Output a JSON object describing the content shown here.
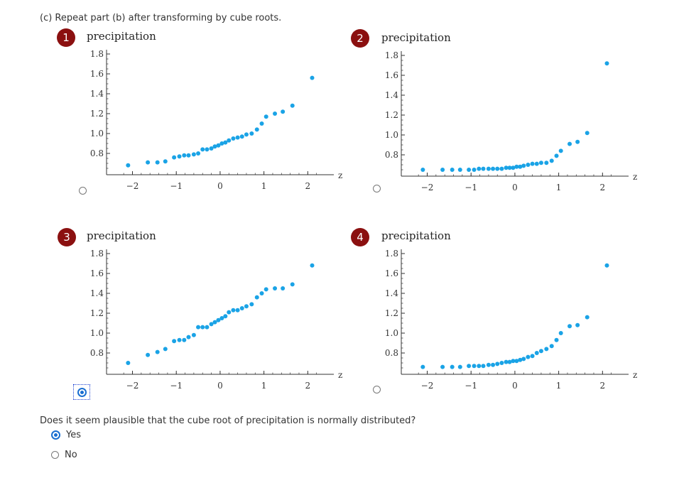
{
  "intro": "(c) Repeat part (b) after transforming by cube roots.",
  "colors": {
    "point": "#1aa3e6",
    "badge": "#8b1010",
    "selected": "#1a6fd1"
  },
  "plots": [
    {
      "number": "1",
      "title": "precipitation",
      "x_label": "z",
      "selected": false,
      "chart_data": {
        "type": "scatter",
        "xlim": [
          -2.3,
          2.4
        ],
        "ylim": [
          0.6,
          1.85
        ],
        "x_ticks": [
          -2,
          -1,
          0,
          1,
          2
        ],
        "x_tick_labels": [
          "−2",
          "−1",
          "0",
          "1",
          "2"
        ],
        "y_ticks": [
          0.8,
          1.0,
          1.2,
          1.4,
          1.6,
          1.8
        ],
        "y_tick_labels": [
          "0.8",
          "1.0",
          "1.2",
          "1.4",
          "1.6",
          "1.8"
        ],
        "points": [
          [
            -2.1,
            0.68
          ],
          [
            -1.65,
            0.71
          ],
          [
            -1.43,
            0.71
          ],
          [
            -1.25,
            0.72
          ],
          [
            -1.05,
            0.76
          ],
          [
            -0.93,
            0.77
          ],
          [
            -0.82,
            0.78
          ],
          [
            -0.72,
            0.78
          ],
          [
            -0.6,
            0.79
          ],
          [
            -0.5,
            0.8
          ],
          [
            -0.4,
            0.84
          ],
          [
            -0.3,
            0.84
          ],
          [
            -0.2,
            0.85
          ],
          [
            -0.12,
            0.87
          ],
          [
            -0.04,
            0.88
          ],
          [
            0.04,
            0.9
          ],
          [
            0.12,
            0.91
          ],
          [
            0.2,
            0.93
          ],
          [
            0.3,
            0.95
          ],
          [
            0.4,
            0.96
          ],
          [
            0.5,
            0.97
          ],
          [
            0.6,
            0.99
          ],
          [
            0.72,
            1.0
          ],
          [
            0.84,
            1.04
          ],
          [
            0.95,
            1.1
          ],
          [
            1.05,
            1.17
          ],
          [
            1.25,
            1.2
          ],
          [
            1.43,
            1.22
          ],
          [
            1.65,
            1.28
          ],
          [
            2.1,
            1.56
          ]
        ]
      }
    },
    {
      "number": "2",
      "title": "precipitation",
      "x_label": "z",
      "selected": false,
      "chart_data": {
        "type": "scatter",
        "xlim": [
          -2.3,
          2.4
        ],
        "ylim": [
          0.6,
          1.85
        ],
        "x_ticks": [
          -2,
          -1,
          0,
          1,
          2
        ],
        "x_tick_labels": [
          "−2",
          "−1",
          "0",
          "1",
          "2"
        ],
        "y_ticks": [
          0.8,
          1.0,
          1.2,
          1.4,
          1.6,
          1.8
        ],
        "y_tick_labels": [
          "0.8",
          "1.0",
          "1.2",
          "1.4",
          "1.6",
          "1.8"
        ],
        "points": [
          [
            -2.1,
            0.65
          ],
          [
            -1.65,
            0.65
          ],
          [
            -1.43,
            0.65
          ],
          [
            -1.25,
            0.65
          ],
          [
            -1.05,
            0.65
          ],
          [
            -0.93,
            0.65
          ],
          [
            -0.82,
            0.66
          ],
          [
            -0.72,
            0.66
          ],
          [
            -0.6,
            0.66
          ],
          [
            -0.5,
            0.66
          ],
          [
            -0.4,
            0.66
          ],
          [
            -0.3,
            0.66
          ],
          [
            -0.2,
            0.67
          ],
          [
            -0.12,
            0.67
          ],
          [
            -0.04,
            0.67
          ],
          [
            0.04,
            0.68
          ],
          [
            0.12,
            0.68
          ],
          [
            0.2,
            0.69
          ],
          [
            0.3,
            0.7
          ],
          [
            0.4,
            0.71
          ],
          [
            0.5,
            0.71
          ],
          [
            0.6,
            0.72
          ],
          [
            0.72,
            0.72
          ],
          [
            0.84,
            0.74
          ],
          [
            0.95,
            0.79
          ],
          [
            1.05,
            0.84
          ],
          [
            1.25,
            0.91
          ],
          [
            1.43,
            0.93
          ],
          [
            1.65,
            1.02
          ],
          [
            2.1,
            1.72
          ]
        ]
      }
    },
    {
      "number": "3",
      "title": "precipitation",
      "x_label": "z",
      "selected": true,
      "chart_data": {
        "type": "scatter",
        "xlim": [
          -2.3,
          2.4
        ],
        "ylim": [
          0.6,
          1.85
        ],
        "x_ticks": [
          -2,
          -1,
          0,
          1,
          2
        ],
        "x_tick_labels": [
          "−2",
          "−1",
          "0",
          "1",
          "2"
        ],
        "y_ticks": [
          0.8,
          1.0,
          1.2,
          1.4,
          1.6,
          1.8
        ],
        "y_tick_labels": [
          "0.8",
          "1.0",
          "1.2",
          "1.4",
          "1.6",
          "1.8"
        ],
        "points": [
          [
            -2.1,
            0.7
          ],
          [
            -1.65,
            0.78
          ],
          [
            -1.43,
            0.81
          ],
          [
            -1.25,
            0.84
          ],
          [
            -1.05,
            0.92
          ],
          [
            -0.93,
            0.93
          ],
          [
            -0.82,
            0.93
          ],
          [
            -0.72,
            0.96
          ],
          [
            -0.6,
            0.98
          ],
          [
            -0.5,
            1.06
          ],
          [
            -0.4,
            1.06
          ],
          [
            -0.3,
            1.06
          ],
          [
            -0.2,
            1.09
          ],
          [
            -0.12,
            1.11
          ],
          [
            -0.04,
            1.13
          ],
          [
            0.04,
            1.15
          ],
          [
            0.12,
            1.17
          ],
          [
            0.2,
            1.21
          ],
          [
            0.3,
            1.23
          ],
          [
            0.4,
            1.23
          ],
          [
            0.5,
            1.25
          ],
          [
            0.6,
            1.27
          ],
          [
            0.72,
            1.29
          ],
          [
            0.84,
            1.36
          ],
          [
            0.95,
            1.4
          ],
          [
            1.05,
            1.44
          ],
          [
            1.25,
            1.45
          ],
          [
            1.43,
            1.45
          ],
          [
            1.65,
            1.49
          ],
          [
            2.1,
            1.68
          ]
        ]
      }
    },
    {
      "number": "4",
      "title": "precipitation",
      "x_label": "z",
      "selected": false,
      "chart_data": {
        "type": "scatter",
        "xlim": [
          -2.3,
          2.4
        ],
        "ylim": [
          0.6,
          1.85
        ],
        "x_ticks": [
          -2,
          -1,
          0,
          1,
          2
        ],
        "x_tick_labels": [
          "−2",
          "−1",
          "0",
          "1",
          "2"
        ],
        "y_ticks": [
          0.8,
          1.0,
          1.2,
          1.4,
          1.6,
          1.8
        ],
        "y_tick_labels": [
          "0.8",
          "1.0",
          "1.2",
          "1.4",
          "1.6",
          "1.8"
        ],
        "points": [
          [
            -2.1,
            0.66
          ],
          [
            -1.65,
            0.66
          ],
          [
            -1.43,
            0.66
          ],
          [
            -1.25,
            0.66
          ],
          [
            -1.05,
            0.67
          ],
          [
            -0.93,
            0.67
          ],
          [
            -0.82,
            0.67
          ],
          [
            -0.72,
            0.67
          ],
          [
            -0.6,
            0.68
          ],
          [
            -0.5,
            0.68
          ],
          [
            -0.4,
            0.69
          ],
          [
            -0.3,
            0.7
          ],
          [
            -0.2,
            0.71
          ],
          [
            -0.12,
            0.71
          ],
          [
            -0.04,
            0.72
          ],
          [
            0.04,
            0.72
          ],
          [
            0.12,
            0.73
          ],
          [
            0.2,
            0.74
          ],
          [
            0.3,
            0.76
          ],
          [
            0.4,
            0.77
          ],
          [
            0.5,
            0.8
          ],
          [
            0.6,
            0.82
          ],
          [
            0.72,
            0.84
          ],
          [
            0.84,
            0.87
          ],
          [
            0.95,
            0.93
          ],
          [
            1.05,
            1.0
          ],
          [
            1.25,
            1.07
          ],
          [
            1.43,
            1.08
          ],
          [
            1.65,
            1.16
          ],
          [
            2.1,
            1.68
          ]
        ]
      }
    }
  ],
  "question": "Does it seem plausible that the cube root of precipitation is normally distributed?",
  "options": [
    {
      "label": "Yes",
      "selected": true
    },
    {
      "label": "No",
      "selected": false
    }
  ]
}
